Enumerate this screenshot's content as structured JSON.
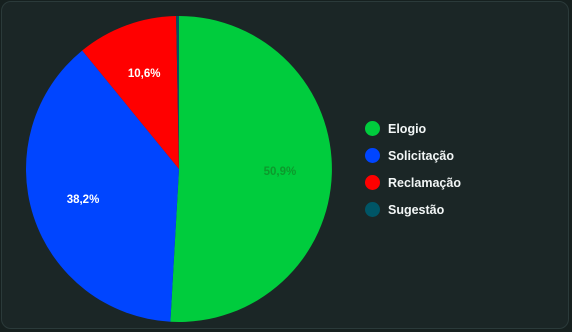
{
  "chart_data": {
    "type": "pie",
    "categories": [
      "Elogio",
      "Solicitação",
      "Reclamação",
      "Sugestão"
    ],
    "values": [
      50.9,
      38.2,
      10.6,
      0.3
    ],
    "value_labels": [
      "50,9%",
      "38,2%",
      "10,6%",
      ""
    ],
    "colors": [
      "#00cc3d",
      "#0045ff",
      "#ff0000",
      "#005566"
    ],
    "label_colors": [
      "#0c9a2c",
      "#ffffff",
      "#ffffff",
      "#ffffff"
    ],
    "start_angle_deg": 0,
    "direction": "clockwise",
    "legend_position": "right"
  },
  "legend": {
    "items": [
      {
        "label": "Elogio",
        "color": "#00cc3d"
      },
      {
        "label": "Solicitação",
        "color": "#0045ff"
      },
      {
        "label": "Reclamação",
        "color": "#ff0000"
      },
      {
        "label": "Sugestão",
        "color": "#005566"
      }
    ]
  }
}
